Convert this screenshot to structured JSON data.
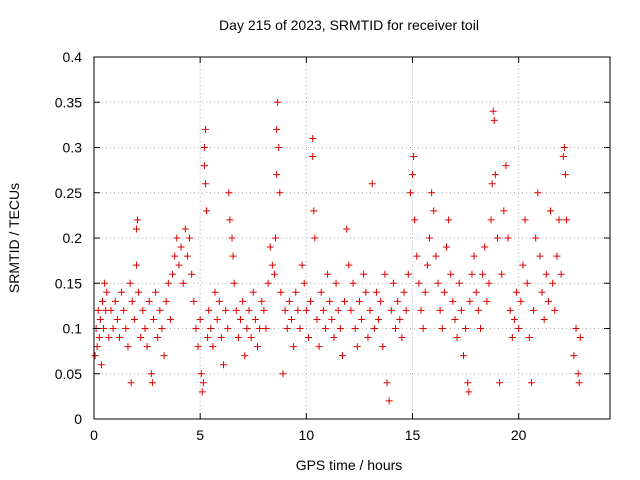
{
  "chart_data": {
    "type": "scatter",
    "title": "Day 215 of 2023, SRMTID for receiver toil",
    "xlabel": "GPS time / hours",
    "ylabel": "SRMTID / TECUs",
    "xlim": [
      0,
      24.3
    ],
    "ylim": [
      0,
      0.4
    ],
    "xticks": [
      0,
      5,
      10,
      15,
      20
    ],
    "yticks": [
      0,
      0.05,
      0.1,
      0.15,
      0.2,
      0.25,
      0.3,
      0.35,
      0.4
    ],
    "ytick_labels": [
      "0",
      "0.05",
      "0.1",
      "0.15",
      "0.2",
      "0.25",
      "0.3",
      "0.35",
      "0.4"
    ],
    "grid": true,
    "marker": "+",
    "marker_color": "#e00000",
    "series": [
      {
        "points": [
          [
            0.05,
            0.07
          ],
          [
            0.1,
            0.1
          ],
          [
            0.15,
            0.08
          ],
          [
            0.2,
            0.12
          ],
          [
            0.25,
            0.09
          ],
          [
            0.3,
            0.11
          ],
          [
            0.35,
            0.06
          ],
          [
            0.4,
            0.13
          ],
          [
            0.45,
            0.1
          ],
          [
            0.5,
            0.15
          ],
          [
            0.55,
            0.12
          ],
          [
            0.6,
            0.14
          ],
          [
            0.7,
            0.09
          ],
          [
            0.8,
            0.12
          ],
          [
            0.9,
            0.1
          ],
          [
            1.0,
            0.13
          ],
          [
            1.1,
            0.11
          ],
          [
            1.2,
            0.09
          ],
          [
            1.3,
            0.14
          ],
          [
            1.4,
            0.12
          ],
          [
            1.5,
            0.1
          ],
          [
            1.6,
            0.08
          ],
          [
            1.7,
            0.15
          ],
          [
            1.75,
            0.04
          ],
          [
            1.8,
            0.13
          ],
          [
            1.9,
            0.11
          ],
          [
            2.0,
            0.17
          ],
          [
            2.0,
            0.21
          ],
          [
            2.05,
            0.22
          ],
          [
            2.1,
            0.14
          ],
          [
            2.2,
            0.09
          ],
          [
            2.3,
            0.12
          ],
          [
            2.4,
            0.1
          ],
          [
            2.5,
            0.08
          ],
          [
            2.6,
            0.13
          ],
          [
            2.7,
            0.05
          ],
          [
            2.75,
            0.04
          ],
          [
            2.8,
            0.11
          ],
          [
            2.9,
            0.14
          ],
          [
            3.0,
            0.09
          ],
          [
            3.1,
            0.12
          ],
          [
            3.2,
            0.1
          ],
          [
            3.3,
            0.07
          ],
          [
            3.4,
            0.13
          ],
          [
            3.5,
            0.15
          ],
          [
            3.6,
            0.11
          ],
          [
            3.7,
            0.16
          ],
          [
            3.8,
            0.18
          ],
          [
            3.9,
            0.2
          ],
          [
            4.0,
            0.17
          ],
          [
            4.1,
            0.19
          ],
          [
            4.2,
            0.15
          ],
          [
            4.3,
            0.21
          ],
          [
            4.4,
            0.18
          ],
          [
            4.5,
            0.2
          ],
          [
            4.6,
            0.16
          ],
          [
            4.7,
            0.13
          ],
          [
            4.8,
            0.1
          ],
          [
            4.9,
            0.08
          ],
          [
            5.0,
            0.11
          ],
          [
            5.05,
            0.05
          ],
          [
            5.1,
            0.03
          ],
          [
            5.15,
            0.04
          ],
          [
            5.2,
            0.28
          ],
          [
            5.2,
            0.3
          ],
          [
            5.25,
            0.26
          ],
          [
            5.25,
            0.32
          ],
          [
            5.3,
            0.23
          ],
          [
            5.35,
            0.09
          ],
          [
            5.4,
            0.12
          ],
          [
            5.5,
            0.1
          ],
          [
            5.6,
            0.08
          ],
          [
            5.7,
            0.14
          ],
          [
            5.8,
            0.11
          ],
          [
            5.9,
            0.13
          ],
          [
            6.0,
            0.09
          ],
          [
            6.1,
            0.06
          ],
          [
            6.2,
            0.12
          ],
          [
            6.3,
            0.1
          ],
          [
            6.35,
            0.25
          ],
          [
            6.4,
            0.22
          ],
          [
            6.5,
            0.2
          ],
          [
            6.55,
            0.18
          ],
          [
            6.6,
            0.15
          ],
          [
            6.7,
            0.12
          ],
          [
            6.8,
            0.09
          ],
          [
            6.9,
            0.11
          ],
          [
            7.0,
            0.13
          ],
          [
            7.1,
            0.07
          ],
          [
            7.2,
            0.1
          ],
          [
            7.3,
            0.12
          ],
          [
            7.4,
            0.09
          ],
          [
            7.5,
            0.14
          ],
          [
            7.6,
            0.11
          ],
          [
            7.7,
            0.08
          ],
          [
            7.8,
            0.1
          ],
          [
            7.9,
            0.13
          ],
          [
            8.0,
            0.12
          ],
          [
            8.1,
            0.1
          ],
          [
            8.2,
            0.15
          ],
          [
            8.3,
            0.19
          ],
          [
            8.4,
            0.17
          ],
          [
            8.5,
            0.16
          ],
          [
            8.55,
            0.2
          ],
          [
            8.6,
            0.27
          ],
          [
            8.6,
            0.32
          ],
          [
            8.65,
            0.35
          ],
          [
            8.7,
            0.3
          ],
          [
            8.75,
            0.25
          ],
          [
            8.8,
            0.14
          ],
          [
            8.9,
            0.05
          ],
          [
            9.0,
            0.12
          ],
          [
            9.1,
            0.1
          ],
          [
            9.2,
            0.13
          ],
          [
            9.3,
            0.11
          ],
          [
            9.4,
            0.08
          ],
          [
            9.5,
            0.14
          ],
          [
            9.6,
            0.12
          ],
          [
            9.7,
            0.1
          ],
          [
            9.8,
            0.17
          ],
          [
            9.9,
            0.15
          ],
          [
            10.0,
            0.12
          ],
          [
            10.1,
            0.09
          ],
          [
            10.2,
            0.13
          ],
          [
            10.3,
            0.29
          ],
          [
            10.3,
            0.31
          ],
          [
            10.35,
            0.23
          ],
          [
            10.4,
            0.2
          ],
          [
            10.5,
            0.11
          ],
          [
            10.6,
            0.08
          ],
          [
            10.7,
            0.14
          ],
          [
            10.8,
            0.12
          ],
          [
            10.9,
            0.1
          ],
          [
            11.0,
            0.16
          ],
          [
            11.1,
            0.13
          ],
          [
            11.2,
            0.11
          ],
          [
            11.3,
            0.09
          ],
          [
            11.4,
            0.15
          ],
          [
            11.5,
            0.12
          ],
          [
            11.6,
            0.1
          ],
          [
            11.7,
            0.07
          ],
          [
            11.8,
            0.13
          ],
          [
            11.9,
            0.21
          ],
          [
            12.0,
            0.17
          ],
          [
            12.1,
            0.12
          ],
          [
            12.2,
            0.15
          ],
          [
            12.3,
            0.1
          ],
          [
            12.4,
            0.08
          ],
          [
            12.5,
            0.13
          ],
          [
            12.6,
            0.11
          ],
          [
            12.7,
            0.16
          ],
          [
            12.8,
            0.14
          ],
          [
            12.9,
            0.09
          ],
          [
            13.0,
            0.12
          ],
          [
            13.1,
            0.26
          ],
          [
            13.2,
            0.1
          ],
          [
            13.3,
            0.14
          ],
          [
            13.4,
            0.11
          ],
          [
            13.5,
            0.13
          ],
          [
            13.6,
            0.08
          ],
          [
            13.7,
            0.16
          ],
          [
            13.8,
            0.04
          ],
          [
            13.9,
            0.02
          ],
          [
            14.0,
            0.12
          ],
          [
            14.1,
            0.15
          ],
          [
            14.2,
            0.1
          ],
          [
            14.3,
            0.13
          ],
          [
            14.4,
            0.11
          ],
          [
            14.5,
            0.09
          ],
          [
            14.6,
            0.14
          ],
          [
            14.7,
            0.12
          ],
          [
            14.8,
            0.16
          ],
          [
            14.9,
            0.25
          ],
          [
            15.0,
            0.27
          ],
          [
            15.05,
            0.29
          ],
          [
            15.1,
            0.22
          ],
          [
            15.2,
            0.18
          ],
          [
            15.3,
            0.15
          ],
          [
            15.4,
            0.12
          ],
          [
            15.5,
            0.1
          ],
          [
            15.6,
            0.14
          ],
          [
            15.7,
            0.17
          ],
          [
            15.8,
            0.2
          ],
          [
            15.9,
            0.25
          ],
          [
            16.0,
            0.23
          ],
          [
            16.1,
            0.18
          ],
          [
            16.2,
            0.15
          ],
          [
            16.3,
            0.12
          ],
          [
            16.4,
            0.1
          ],
          [
            16.5,
            0.14
          ],
          [
            16.6,
            0.19
          ],
          [
            16.7,
            0.22
          ],
          [
            16.8,
            0.16
          ],
          [
            16.9,
            0.13
          ],
          [
            17.0,
            0.11
          ],
          [
            17.1,
            0.09
          ],
          [
            17.2,
            0.15
          ],
          [
            17.3,
            0.12
          ],
          [
            17.4,
            0.07
          ],
          [
            17.5,
            0.1
          ],
          [
            17.6,
            0.04
          ],
          [
            17.65,
            0.03
          ],
          [
            17.7,
            0.13
          ],
          [
            17.8,
            0.16
          ],
          [
            17.9,
            0.18
          ],
          [
            18.0,
            0.14
          ],
          [
            18.1,
            0.12
          ],
          [
            18.2,
            0.1
          ],
          [
            18.3,
            0.16
          ],
          [
            18.4,
            0.19
          ],
          [
            18.5,
            0.13
          ],
          [
            18.6,
            0.15
          ],
          [
            18.7,
            0.22
          ],
          [
            18.75,
            0.26
          ],
          [
            18.8,
            0.34
          ],
          [
            18.85,
            0.33
          ],
          [
            18.9,
            0.27
          ],
          [
            19.0,
            0.2
          ],
          [
            19.1,
            0.04
          ],
          [
            19.2,
            0.16
          ],
          [
            19.3,
            0.23
          ],
          [
            19.4,
            0.28
          ],
          [
            19.5,
            0.2
          ],
          [
            19.6,
            0.12
          ],
          [
            19.7,
            0.09
          ],
          [
            19.8,
            0.11
          ],
          [
            19.9,
            0.14
          ],
          [
            20.0,
            0.1
          ],
          [
            20.1,
            0.13
          ],
          [
            20.2,
            0.17
          ],
          [
            20.3,
            0.22
          ],
          [
            20.4,
            0.15
          ],
          [
            20.5,
            0.09
          ],
          [
            20.6,
            0.04
          ],
          [
            20.7,
            0.12
          ],
          [
            20.8,
            0.2
          ],
          [
            20.9,
            0.25
          ],
          [
            21.0,
            0.18
          ],
          [
            21.1,
            0.14
          ],
          [
            21.2,
            0.11
          ],
          [
            21.3,
            0.16
          ],
          [
            21.4,
            0.13
          ],
          [
            21.5,
            0.23
          ],
          [
            21.6,
            0.15
          ],
          [
            21.7,
            0.12
          ],
          [
            21.8,
            0.18
          ],
          [
            21.9,
            0.22
          ],
          [
            22.0,
            0.16
          ],
          [
            22.1,
            0.29
          ],
          [
            22.15,
            0.3
          ],
          [
            22.2,
            0.27
          ],
          [
            22.25,
            0.22
          ],
          [
            22.6,
            0.07
          ],
          [
            22.7,
            0.1
          ],
          [
            22.8,
            0.05
          ],
          [
            22.85,
            0.04
          ],
          [
            22.9,
            0.09
          ]
        ]
      }
    ]
  }
}
